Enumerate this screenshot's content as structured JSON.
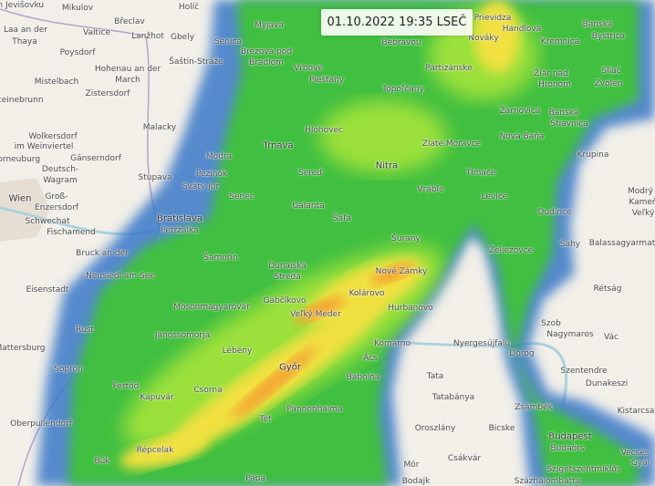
{
  "timestamp": "01.10.2022 19:35 LSEČ",
  "colors": {
    "map_bg": "#f2efe9",
    "radar_blue": "#3a78c8",
    "radar_green": "#3fbf3f",
    "radar_lightgreen": "#9be03a",
    "radar_yellow": "#f0e040",
    "radar_orange": "#f5a030"
  },
  "places": [
    "an Jevišovku",
    "Mikulov",
    "Holíč",
    "Břeclav",
    "Valtice",
    "Lanžhot",
    "Gbely",
    "Laa an der",
    "Thaya",
    "Poysdorf",
    "Hohenau an der",
    "March",
    "Šaštín-Stráže",
    "Senica",
    "Brezová pod",
    "Bradlom",
    "Myjava",
    "Mistelbach",
    "Zistersdorf",
    "Steinebrunn",
    "Malacky",
    "Wolkersdorf",
    "im Weinviertel",
    "Gänserndorf",
    "Korneuburg",
    "Deutsch-",
    "Wagram",
    "Wien",
    "Groß-",
    "Enzersdorf",
    "Schwechat",
    "Fischamend",
    "Bruck an der",
    "Neusiedl am See",
    "Eisenstadt",
    "Rust",
    "Mattersburg",
    "Sopron",
    "Oberpullendorf",
    "Fertőd",
    "Kapuvár",
    "Csorna",
    "Répcelak",
    "Bük",
    "Vrbové",
    "Piešťany",
    "Bebravou",
    "Partizánske",
    "Topoľčany",
    "Prievidza",
    "Nováky",
    "Handlová",
    "Banská",
    "Bystrica",
    "Kremnica",
    "Žiar nad",
    "Hronom",
    "Sliač",
    "Zvolen",
    "Hlohovec",
    "Trnava",
    "Zlaté Moravce",
    "Žarnovica",
    "Nová Baňa",
    "Banská",
    "Štiavnica",
    "Krupina",
    "Modra",
    "Pezinok",
    "Svätý Jur",
    "Senec",
    "Stupava",
    "Sereď",
    "Nitra",
    "Vráble",
    "Tlmače",
    "Levice",
    "Galanta",
    "Šaľa",
    "Bratislava",
    "Petržalka",
    "Šamorín",
    "Šurany",
    "Želiezovce",
    "Dudince",
    "Modrý",
    "Kameň",
    "Veľký",
    "Šahy",
    "Balassagyarmat",
    "Dunajská",
    "Streda",
    "Nové Zámky",
    "Kolárovo",
    "Hurbanovo",
    "Gabčíkovo",
    "Mosonmagyaróvár",
    "Jánossomorja",
    "Veľký Meder",
    "Lébény",
    "Komárno",
    "Nyergesújfalu",
    "Dorog",
    "Szob",
    "Nagymaros",
    "Vác",
    "Rétság",
    "Győr",
    "Ács",
    "Bábolna",
    "Tata",
    "Tatabánya",
    "Szentendre",
    "Dunakeszi",
    "Kistarcsa",
    "Pannonhalma",
    "Tét",
    "Oroszlány",
    "Bicske",
    "Zsámbék",
    "Budapest",
    "Budaörs",
    "Mór",
    "Csákvár",
    "Bodajk",
    "Pápa",
    "Vecsés",
    "Gyál",
    "Szigetszentmiklós",
    "Százhalombatta"
  ]
}
